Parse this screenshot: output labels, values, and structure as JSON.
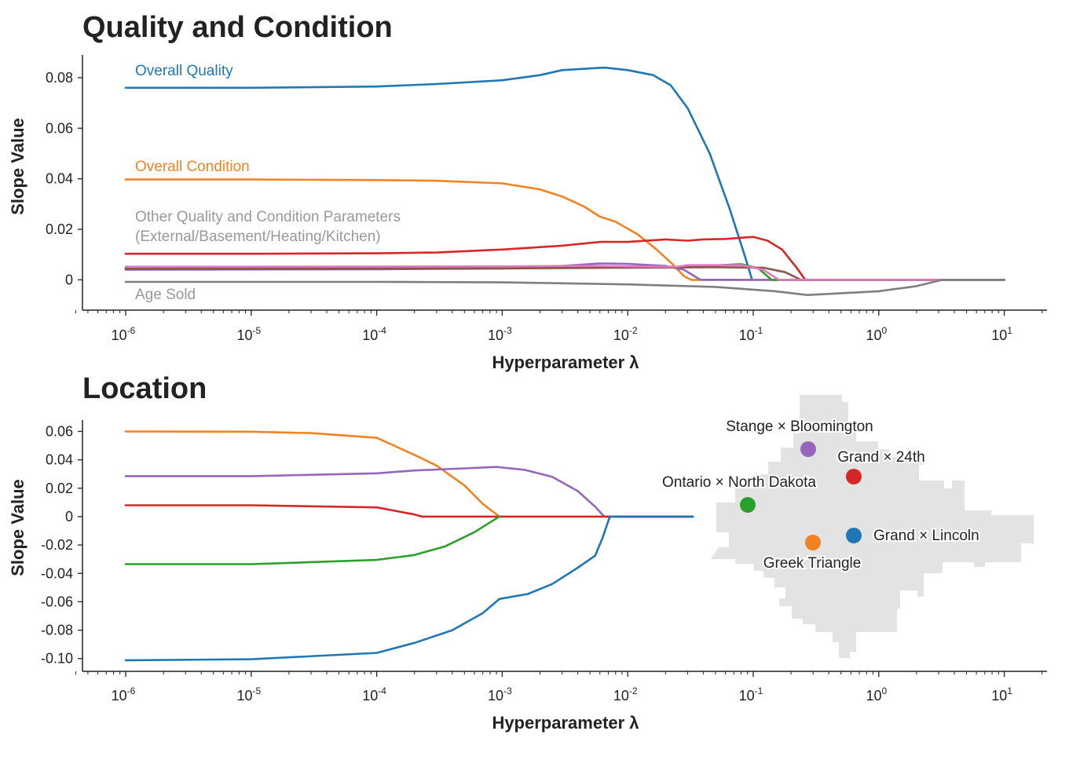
{
  "colors": {
    "blue": "#1f77b4",
    "orange": "#f28322",
    "green": "#2ca02c",
    "red": "#d62728",
    "purple": "#9467bd",
    "brown": "#8c564b",
    "pink": "#e377c2",
    "gray": "#7f7f7f",
    "annotation_gray": "#999999",
    "map_fill": "#e3e3e3"
  },
  "chart_data": [
    {
      "type": "line",
      "title": "Quality and Condition",
      "xlabel": "Hyperparameter λ",
      "ylabel": "Slope Value",
      "x_scale": "log",
      "xlim": [
        3.2e-07,
        20
      ],
      "ylim": [
        -0.012,
        0.089
      ],
      "xticks": [
        1e-06,
        1e-05,
        0.0001,
        0.001,
        0.01,
        0.1,
        1,
        10
      ],
      "xtick_labels": [
        {
          "base": "10",
          "exp": "-6"
        },
        {
          "base": "10",
          "exp": "-5"
        },
        {
          "base": "10",
          "exp": "-4"
        },
        {
          "base": "10",
          "exp": "-3"
        },
        {
          "base": "10",
          "exp": "-2"
        },
        {
          "base": "10",
          "exp": "-1"
        },
        {
          "base": "10",
          "exp": "0"
        },
        {
          "base": "10",
          "exp": "1"
        }
      ],
      "yticks": [
        0,
        0.02,
        0.04,
        0.06,
        0.08
      ],
      "ytick_labels": [
        "0",
        "0.02",
        "0.04",
        "0.06",
        "0.08"
      ],
      "annotations": [
        {
          "id": "overall-quality",
          "lines": [
            "Overall Quality"
          ],
          "color": "blue"
        },
        {
          "id": "overall-condition",
          "lines": [
            "Overall Condition"
          ],
          "color": "orange"
        },
        {
          "id": "other-params",
          "lines": [
            "Other Quality and Condition Parameters",
            "(External/Basement/Heating/Kitchen)"
          ],
          "color": "annotation_gray"
        },
        {
          "id": "age-sold",
          "lines": [
            "Age Sold"
          ],
          "color": "annotation_gray"
        }
      ],
      "series": [
        {
          "color": "blue",
          "x": [
            1e-06,
            1e-05,
            0.0001,
            0.0003,
            0.001,
            0.002,
            0.003,
            0.0065,
            0.01,
            0.016,
            0.022,
            0.03,
            0.045,
            0.065,
            0.085,
            0.098
          ],
          "y": [
            0.076,
            0.076,
            0.0765,
            0.0775,
            0.079,
            0.081,
            0.083,
            0.084,
            0.083,
            0.081,
            0.077,
            0.068,
            0.05,
            0.028,
            0.01,
            0.0
          ]
        },
        {
          "color": "orange",
          "x": [
            1e-06,
            1e-05,
            0.0001,
            0.0003,
            0.001,
            0.002,
            0.003,
            0.0045,
            0.006,
            0.008,
            0.012,
            0.017,
            0.023,
            0.028,
            0.032,
            0.1,
            10.0
          ],
          "y": [
            0.0397,
            0.0397,
            0.0395,
            0.0392,
            0.0382,
            0.0358,
            0.033,
            0.029,
            0.025,
            0.023,
            0.018,
            0.012,
            0.006,
            0.0015,
            0.0,
            0.0,
            0.0
          ]
        },
        {
          "color": "red",
          "x": [
            1e-06,
            1e-05,
            0.0001,
            0.0003,
            0.001,
            0.003,
            0.006,
            0.01,
            0.02,
            0.03,
            0.04,
            0.06,
            0.1,
            0.13,
            0.17,
            0.22,
            0.26,
            10.0
          ],
          "y": [
            0.0103,
            0.0103,
            0.0105,
            0.0108,
            0.012,
            0.0135,
            0.015,
            0.015,
            0.016,
            0.0155,
            0.016,
            0.0162,
            0.017,
            0.0155,
            0.012,
            0.005,
            0.0,
            0.0
          ]
        },
        {
          "color": "purple",
          "x": [
            1e-06,
            0.0001,
            0.001,
            0.003,
            0.006,
            0.01,
            0.02,
            0.028,
            0.038,
            10.0
          ],
          "y": [
            0.004,
            0.0042,
            0.0045,
            0.0055,
            0.0065,
            0.0063,
            0.0055,
            0.004,
            0.0,
            0.0
          ]
        },
        {
          "color": "green",
          "x": [
            1e-06,
            0.001,
            0.01,
            0.03,
            0.08,
            0.11,
            0.14,
            10.0
          ],
          "y": [
            0.0048,
            0.0049,
            0.005,
            0.0052,
            0.0062,
            0.0045,
            0.0,
            0.0
          ]
        },
        {
          "color": "brown",
          "x": [
            1e-06,
            0.001,
            0.01,
            0.05,
            0.12,
            0.18,
            0.24,
            10.0
          ],
          "y": [
            0.0043,
            0.0045,
            0.0048,
            0.005,
            0.0048,
            0.003,
            0.0,
            0.0
          ]
        },
        {
          "color": "pink",
          "x": [
            1e-06,
            0.001,
            0.003,
            0.006,
            0.01,
            0.025,
            0.03,
            0.05,
            0.08,
            0.12,
            0.16,
            10.0
          ],
          "y": [
            0.0052,
            0.0053,
            0.0055,
            0.0055,
            0.0053,
            0.0052,
            0.0058,
            0.0058,
            0.0058,
            0.004,
            0.0,
            0.0
          ]
        },
        {
          "color": "gray",
          "x": [
            1e-06,
            0.0001,
            0.001,
            0.01,
            0.05,
            0.15,
            0.27,
            1.0,
            2.0,
            3.2,
            10.0
          ],
          "y": [
            -0.0008,
            -0.0008,
            -0.001,
            -0.0018,
            -0.0028,
            -0.0045,
            -0.006,
            -0.0045,
            -0.0025,
            0.0,
            0.0
          ]
        }
      ]
    },
    {
      "type": "line",
      "title": "Location",
      "xlabel": "Hyperparameter λ",
      "ylabel": "Slope Value",
      "x_scale": "log",
      "xlim": [
        3.2e-07,
        20
      ],
      "ylim": [
        -0.109,
        0.068
      ],
      "xticks": [
        1e-06,
        1e-05,
        0.0001,
        0.001,
        0.01,
        0.1,
        1,
        10
      ],
      "xtick_labels": [
        {
          "base": "10",
          "exp": "-6"
        },
        {
          "base": "10",
          "exp": "-5"
        },
        {
          "base": "10",
          "exp": "-4"
        },
        {
          "base": "10",
          "exp": "-3"
        },
        {
          "base": "10",
          "exp": "-2"
        },
        {
          "base": "10",
          "exp": "-1"
        },
        {
          "base": "10",
          "exp": "0"
        },
        {
          "base": "10",
          "exp": "1"
        }
      ],
      "yticks": [
        0.06,
        0.04,
        0.02,
        0,
        -0.02,
        -0.04,
        -0.06,
        -0.08,
        -0.1
      ],
      "ytick_labels": [
        "0.06",
        "0.04",
        "0.02",
        "0",
        "-0.02",
        "-0.04",
        "-0.06",
        "-0.08",
        "-0.10"
      ],
      "series": [
        {
          "name": "Greek Triangle",
          "color": "orange",
          "x": [
            1e-06,
            1e-05,
            3e-05,
            0.0001,
            0.0002,
            0.0003,
            0.0005,
            0.0007,
            0.00095
          ],
          "y": [
            0.06,
            0.0598,
            0.0588,
            0.0555,
            0.0435,
            0.036,
            0.022,
            0.009,
            0.0
          ]
        },
        {
          "name": "Stange × Bloomington",
          "color": "purple",
          "x": [
            1e-06,
            1e-05,
            0.0001,
            0.0002,
            0.0005,
            0.0009,
            0.0015,
            0.0025,
            0.004,
            0.0055,
            0.0065,
            0.033
          ],
          "y": [
            0.0285,
            0.0285,
            0.0305,
            0.0325,
            0.034,
            0.035,
            0.033,
            0.028,
            0.018,
            0.007,
            0.0,
            0.0
          ]
        },
        {
          "name": "Grand × 24th",
          "color": "red",
          "x": [
            1e-06,
            1e-05,
            0.0001,
            0.0002,
            0.00023,
            0.001,
            0.006,
            0.033
          ],
          "y": [
            0.008,
            0.008,
            0.0065,
            0.0015,
            0.0,
            0.0,
            0.0,
            0.0
          ]
        },
        {
          "name": "Ontario × North Dakota",
          "color": "green",
          "x": [
            1e-06,
            1e-05,
            0.0001,
            0.0002,
            0.00035,
            0.0006,
            0.00095
          ],
          "y": [
            -0.0335,
            -0.0335,
            -0.0305,
            -0.027,
            -0.021,
            -0.011,
            0.0
          ]
        },
        {
          "name": "Grand × Lincoln",
          "color": "blue",
          "x": [
            1e-06,
            1e-05,
            0.0001,
            0.0002,
            0.0004,
            0.0007,
            0.00095,
            0.0016,
            0.0025,
            0.004,
            0.0055,
            0.0063,
            0.0072,
            0.033
          ],
          "y": [
            -0.1012,
            -0.1005,
            -0.096,
            -0.089,
            -0.08,
            -0.068,
            -0.058,
            -0.0545,
            -0.0475,
            -0.036,
            -0.0275,
            -0.015,
            0.0,
            0.0
          ]
        }
      ],
      "map": {
        "points": [
          {
            "label": "Stange × Bloomington",
            "color": "purple"
          },
          {
            "label": "Grand × 24th",
            "color": "red"
          },
          {
            "label": "Ontario × North Dakota",
            "color": "green"
          },
          {
            "label": "Grand × Lincoln",
            "color": "blue"
          },
          {
            "label": "Greek Triangle",
            "color": "orange"
          }
        ]
      }
    }
  ]
}
